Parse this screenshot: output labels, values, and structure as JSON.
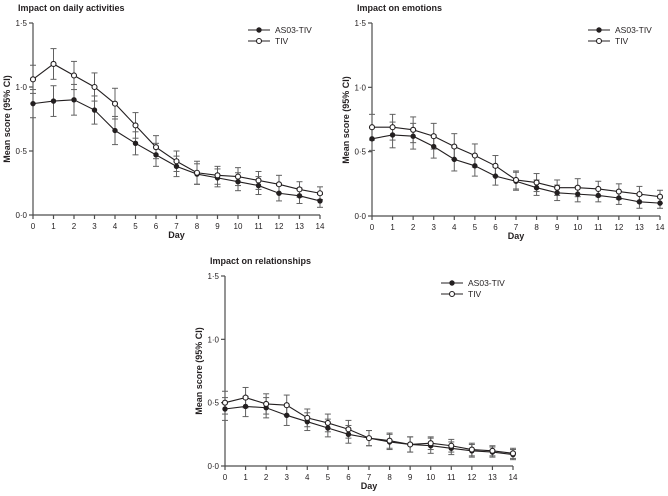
{
  "figure": {
    "background": "#ffffff",
    "text_color": "#231f20",
    "axis_color": "#4d4d4d",
    "line_color": "#231f20",
    "error_bar_color": "#616161",
    "open_marker_fill": "#ffffff"
  },
  "chart_data": [
    {
      "type": "line",
      "title": "Impact on daily activities",
      "xlabel": "Day",
      "ylabel": "Mean score (95% CI)",
      "xlim": [
        0,
        14
      ],
      "ylim": [
        0,
        1.5
      ],
      "x": [
        0,
        1,
        2,
        3,
        4,
        5,
        6,
        7,
        8,
        9,
        10,
        11,
        12,
        13,
        14
      ],
      "xtick_labels": [
        "0",
        "1",
        "2",
        "3",
        "4",
        "5",
        "6",
        "7",
        "8",
        "9",
        "10",
        "11",
        "12",
        "13",
        "14"
      ],
      "yticks": [
        {
          "value": 0.0,
          "label": "0·0"
        },
        {
          "value": 0.5,
          "label": "0·5"
        },
        {
          "value": 1.0,
          "label": "1·0"
        },
        {
          "value": 1.5,
          "label": "1·5"
        }
      ],
      "legend_position": "top-right",
      "grid": false,
      "series": [
        {
          "name": "AS03-TIV",
          "marker": "filled-circle",
          "color": "#231f20",
          "values": [
            0.87,
            0.89,
            0.9,
            0.82,
            0.66,
            0.56,
            0.47,
            0.38,
            0.32,
            0.29,
            0.26,
            0.23,
            0.17,
            0.15,
            0.11
          ],
          "ci_halfwidth": [
            0.11,
            0.12,
            0.12,
            0.11,
            0.11,
            0.09,
            0.09,
            0.08,
            0.08,
            0.07,
            0.07,
            0.07,
            0.06,
            0.06,
            0.05
          ]
        },
        {
          "name": "TIV",
          "marker": "open-circle",
          "color": "#231f20",
          "values": [
            1.06,
            1.18,
            1.09,
            1.0,
            0.87,
            0.7,
            0.53,
            0.42,
            0.33,
            0.31,
            0.3,
            0.27,
            0.24,
            0.2,
            0.17
          ],
          "ci_halfwidth": [
            0.11,
            0.12,
            0.11,
            0.11,
            0.12,
            0.1,
            0.09,
            0.08,
            0.09,
            0.07,
            0.07,
            0.07,
            0.07,
            0.06,
            0.05
          ]
        }
      ]
    },
    {
      "type": "line",
      "title": "Impact on emotions",
      "xlabel": "Day",
      "ylabel": "Mean score (95% CI)",
      "xlim": [
        0,
        14
      ],
      "ylim": [
        0,
        1.5
      ],
      "x": [
        0,
        1,
        2,
        3,
        4,
        5,
        6,
        7,
        8,
        9,
        10,
        11,
        12,
        13,
        14
      ],
      "xtick_labels": [
        "0",
        "1",
        "2",
        "3",
        "4",
        "5",
        "6",
        "7",
        "8",
        "9",
        "10",
        "11",
        "12",
        "13",
        "14"
      ],
      "yticks": [
        {
          "value": 0.0,
          "label": "0·0"
        },
        {
          "value": 0.5,
          "label": "0·5"
        },
        {
          "value": 1.0,
          "label": "1·0"
        },
        {
          "value": 1.5,
          "label": "1·5"
        }
      ],
      "legend_position": "top-right",
      "grid": false,
      "series": [
        {
          "name": "AS03-TIV",
          "marker": "filled-circle",
          "color": "#231f20",
          "values": [
            0.6,
            0.63,
            0.62,
            0.54,
            0.44,
            0.39,
            0.31,
            0.27,
            0.22,
            0.18,
            0.17,
            0.16,
            0.14,
            0.11,
            0.1
          ],
          "ci_halfwidth": [
            0.09,
            0.1,
            0.1,
            0.09,
            0.09,
            0.08,
            0.07,
            0.07,
            0.06,
            0.06,
            0.06,
            0.05,
            0.05,
            0.05,
            0.04
          ]
        },
        {
          "name": "TIV",
          "marker": "open-circle",
          "color": "#231f20",
          "values": [
            0.69,
            0.69,
            0.67,
            0.62,
            0.54,
            0.47,
            0.39,
            0.28,
            0.26,
            0.22,
            0.22,
            0.21,
            0.19,
            0.17,
            0.15
          ],
          "ci_halfwidth": [
            0.1,
            0.1,
            0.1,
            0.1,
            0.1,
            0.09,
            0.08,
            0.07,
            0.07,
            0.06,
            0.07,
            0.06,
            0.06,
            0.06,
            0.05
          ]
        }
      ]
    },
    {
      "type": "line",
      "title": "Impact on relationships",
      "xlabel": "Day",
      "ylabel": "Mean score (95% CI)",
      "xlim": [
        0,
        14
      ],
      "ylim": [
        0,
        1.5
      ],
      "x": [
        0,
        1,
        2,
        3,
        4,
        5,
        6,
        7,
        8,
        9,
        10,
        11,
        12,
        13,
        14
      ],
      "xtick_labels": [
        "0",
        "1",
        "2",
        "3",
        "4",
        "5",
        "6",
        "7",
        "8",
        "9",
        "10",
        "11",
        "12",
        "13",
        "14"
      ],
      "yticks": [
        {
          "value": 0.0,
          "label": "0·0"
        },
        {
          "value": 0.5,
          "label": "0·5"
        },
        {
          "value": 1.0,
          "label": "1·0"
        },
        {
          "value": 1.5,
          "label": "1·5"
        }
      ],
      "legend_position": "top-right",
      "grid": false,
      "series": [
        {
          "name": "AS03-TIV",
          "marker": "filled-circle",
          "color": "#231f20",
          "values": [
            0.45,
            0.47,
            0.46,
            0.4,
            0.35,
            0.3,
            0.25,
            0.22,
            0.19,
            0.17,
            0.16,
            0.14,
            0.12,
            0.11,
            0.09
          ],
          "ci_halfwidth": [
            0.09,
            0.08,
            0.08,
            0.08,
            0.07,
            0.07,
            0.07,
            0.06,
            0.06,
            0.06,
            0.06,
            0.05,
            0.05,
            0.04,
            0.04
          ]
        },
        {
          "name": "TIV",
          "marker": "open-circle",
          "color": "#231f20",
          "values": [
            0.5,
            0.54,
            0.49,
            0.48,
            0.38,
            0.34,
            0.29,
            0.22,
            0.2,
            0.17,
            0.18,
            0.16,
            0.13,
            0.12,
            0.1
          ],
          "ci_halfwidth": [
            0.09,
            0.08,
            0.08,
            0.08,
            0.07,
            0.07,
            0.07,
            0.06,
            0.06,
            0.06,
            0.05,
            0.05,
            0.05,
            0.04,
            0.04
          ]
        }
      ]
    }
  ]
}
